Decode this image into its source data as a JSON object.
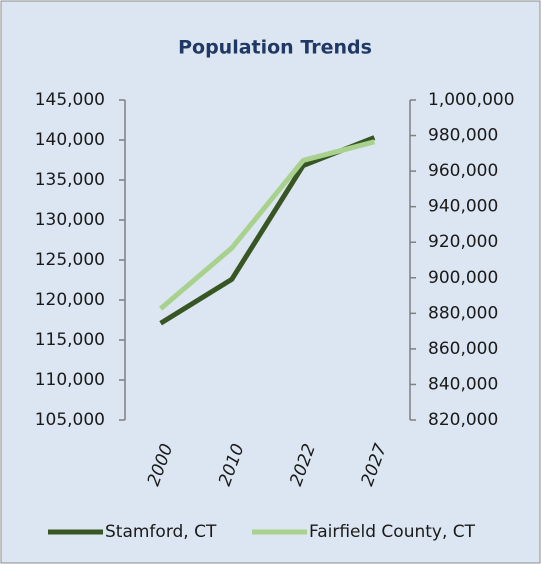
{
  "chart_data": {
    "type": "line",
    "title": "Population Trends",
    "categories": [
      "2000",
      "2010",
      "2022",
      "2027"
    ],
    "series": [
      {
        "name": "Stamford, CT",
        "color": "#375623",
        "values": [
          117100,
          122600,
          136800,
          140300
        ]
      },
      {
        "name": "Fairfield County, CT",
        "color": "#a9d18e",
        "values": [
          882600,
          916800,
          966000,
          976500
        ],
        "axis": "y2"
      }
    ],
    "ylim": [
      105000,
      145000
    ],
    "yticks": [
      {
        "value": 105000,
        "label": "105,000"
      },
      {
        "value": 110000,
        "label": "110,000"
      },
      {
        "value": 115000,
        "label": "115,000"
      },
      {
        "value": 120000,
        "label": "120,000"
      },
      {
        "value": 125000,
        "label": "125,000"
      },
      {
        "value": 130000,
        "label": "130,000"
      },
      {
        "value": 135000,
        "label": "135,000"
      },
      {
        "value": 140000,
        "label": "140,000"
      },
      {
        "value": 145000,
        "label": "145,000"
      }
    ],
    "y2lim": [
      820000,
      1000000
    ],
    "y2ticks": [
      {
        "value": 820000,
        "label": "820,000"
      },
      {
        "value": 840000,
        "label": "840,000"
      },
      {
        "value": 860000,
        "label": "860,000"
      },
      {
        "value": 880000,
        "label": "880,000"
      },
      {
        "value": 900000,
        "label": "900,000"
      },
      {
        "value": 920000,
        "label": "920,000"
      },
      {
        "value": 940000,
        "label": "940,000"
      },
      {
        "value": 960000,
        "label": "960,000"
      },
      {
        "value": 980000,
        "label": "980,000"
      },
      {
        "value": 1000000,
        "label": "1,000,000"
      }
    ],
    "legend": "bottom"
  }
}
